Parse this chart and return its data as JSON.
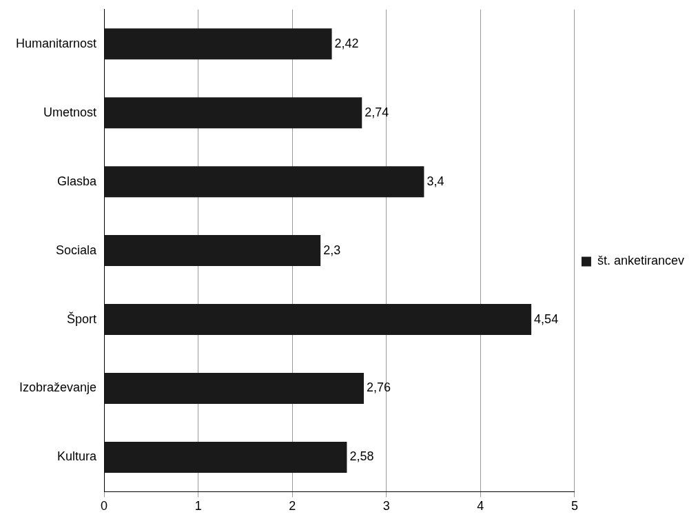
{
  "chart_data": {
    "type": "bar",
    "orientation": "horizontal",
    "categories": [
      "Humanitarnost",
      "Umetnost",
      "Glasba",
      "Sociala",
      "Šport",
      "Izobraževanje",
      "Kultura"
    ],
    "series": [
      {
        "name": "št. anketirancev",
        "color": "#1a1a1a",
        "values": [
          2.42,
          2.74,
          3.4,
          2.3,
          4.54,
          2.76,
          2.58
        ],
        "value_labels": [
          "2,42",
          "2,74",
          "3,4",
          "2,3",
          "4,54",
          "2,76",
          "2,58"
        ]
      }
    ],
    "xlim": [
      0,
      5
    ],
    "xticks": [
      0,
      1,
      2,
      3,
      4,
      5
    ],
    "grid": "x",
    "legend": "right"
  }
}
